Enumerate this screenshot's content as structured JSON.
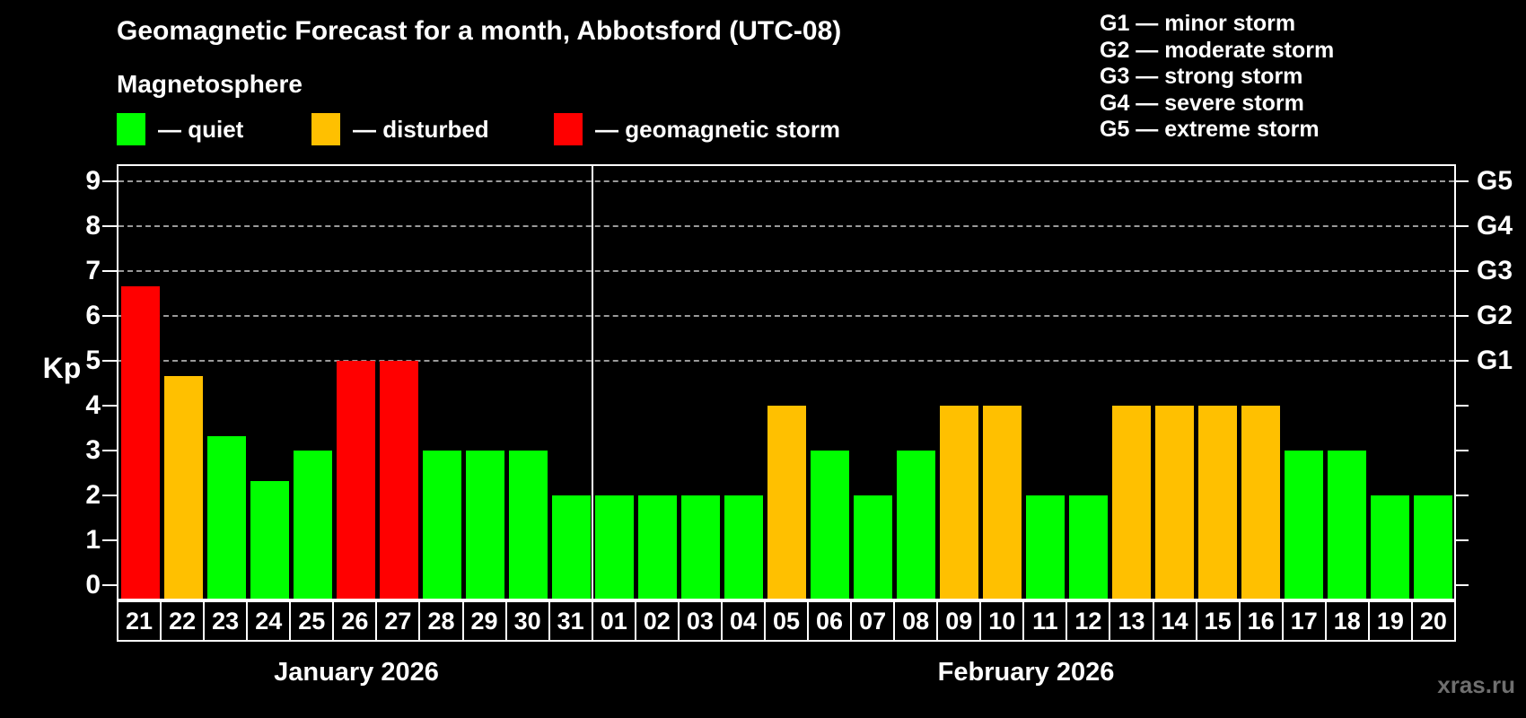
{
  "header": {
    "title": "Geomagnetic Forecast for a month, Abbotsford (UTC-08)",
    "subtitle": "Magnetosphere"
  },
  "status_legend": [
    {
      "key": "quiet",
      "label": "— quiet",
      "color": "#00ff00"
    },
    {
      "key": "disturbed",
      "label": "— disturbed",
      "color": "#ffc000"
    },
    {
      "key": "storm",
      "label": "— geomagnetic storm",
      "color": "#ff0000"
    }
  ],
  "g_scale_legend": [
    "G1 — minor storm",
    "G2 — moderate storm",
    "G3 — strong storm",
    "G4 — severe storm",
    "G5 — extreme storm"
  ],
  "axis": {
    "y_label": "Kp",
    "y_ticks": [
      0,
      1,
      2,
      3,
      4,
      5,
      6,
      7,
      8,
      9
    ],
    "right_g_labels": [
      {
        "text": "G5",
        "kp": 9
      },
      {
        "text": "G4",
        "kp": 8
      },
      {
        "text": "G3",
        "kp": 7
      },
      {
        "text": "G2",
        "kp": 6
      },
      {
        "text": "G1",
        "kp": 5
      }
    ]
  },
  "months": [
    {
      "name": "January 2026",
      "days": 11
    },
    {
      "name": "February 2026",
      "days": 20
    }
  ],
  "watermark": "xras.ru",
  "colors": {
    "quiet": "#00ff00",
    "disturbed": "#ffc000",
    "storm": "#ff0000",
    "grid": "#9a9a9a",
    "axis": "#ffffff",
    "background": "#000000",
    "watermark": "#6f6f6f"
  },
  "chart_data": {
    "type": "bar",
    "title": "Geomagnetic Forecast for a month, Abbotsford (UTC-08)",
    "subtitle": "Magnetosphere",
    "xlabel": "",
    "ylabel": "Kp",
    "ylim": [
      0,
      9
    ],
    "grid": "horizontal dashed lines at Kp 5,6,7,8,9 labeled G1,G2,G3,G4,G5 on right axis",
    "legend_position": "top",
    "categories": [
      "21",
      "22",
      "23",
      "24",
      "25",
      "26",
      "27",
      "28",
      "29",
      "30",
      "31",
      "01",
      "02",
      "03",
      "04",
      "05",
      "06",
      "07",
      "08",
      "09",
      "10",
      "11",
      "12",
      "13",
      "14",
      "15",
      "16",
      "17",
      "18",
      "19",
      "20"
    ],
    "values": [
      6.67,
      4.67,
      3.33,
      2.33,
      3,
      5,
      5,
      3,
      3,
      3,
      2,
      2,
      2,
      2,
      2,
      4,
      3,
      2,
      3,
      4,
      4,
      2,
      2,
      4,
      4,
      4,
      4,
      3,
      3,
      2,
      2
    ],
    "statuses": [
      "storm",
      "disturbed",
      "quiet",
      "quiet",
      "quiet",
      "storm",
      "storm",
      "quiet",
      "quiet",
      "quiet",
      "quiet",
      "quiet",
      "quiet",
      "quiet",
      "quiet",
      "disturbed",
      "quiet",
      "quiet",
      "quiet",
      "disturbed",
      "disturbed",
      "quiet",
      "quiet",
      "disturbed",
      "disturbed",
      "disturbed",
      "disturbed",
      "quiet",
      "quiet",
      "quiet",
      "quiet"
    ],
    "month_groups": [
      {
        "name": "January 2026",
        "count": 11
      },
      {
        "name": "February 2026",
        "count": 20
      }
    ]
  }
}
